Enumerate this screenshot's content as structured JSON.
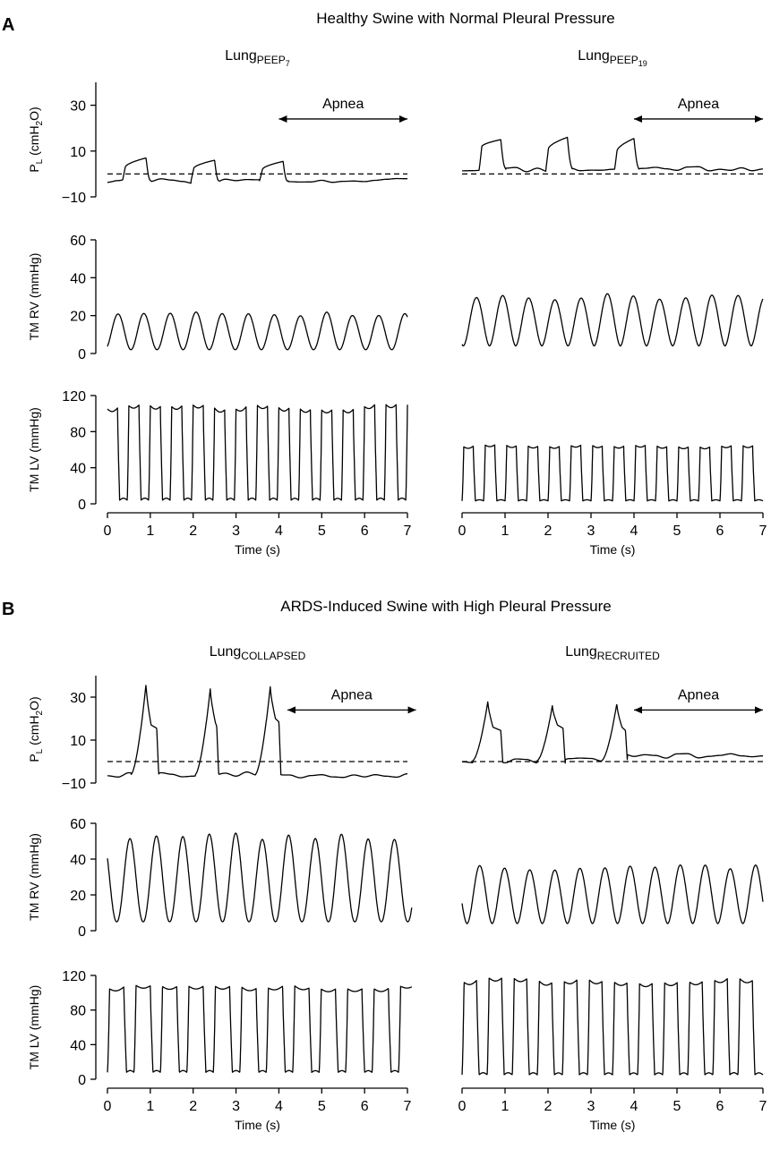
{
  "panels": [
    {
      "letter": "A",
      "title": "Healthy Swine with Normal Pleural Pressure"
    },
    {
      "letter": "B",
      "title": "ARDS-Induced Swine with High Pleural Pressure"
    }
  ],
  "apnea_label": "Apnea",
  "chart_data": [
    {
      "type": "line",
      "panel": "A",
      "column": "left",
      "column_title": {
        "base": "Lung",
        "sub": "PEEP",
        "subsub": "7"
      },
      "xlabel": "Time (s)",
      "xlim": [
        0,
        7
      ],
      "x_ticks": [
        0,
        1,
        2,
        3,
        4,
        5,
        6,
        7
      ],
      "apnea": [
        4.0,
        7.0
      ],
      "rows": [
        {
          "name": "PL",
          "ylabel": "P_L (cmH2O)",
          "ylim": [
            -10,
            40
          ],
          "y_ticks": [
            -10,
            10,
            30
          ],
          "zero_line": 0,
          "shape": "pl",
          "baseline": -3,
          "breaths": [
            [
              0.4,
              6,
              10,
              0.5
            ],
            [
              2.0,
              5.5,
              9,
              0.5
            ],
            [
              3.6,
              5,
              8.5,
              0.5
            ]
          ],
          "tail": -3,
          "seed": 3
        },
        {
          "name": "RV",
          "ylabel": "TM RV (mmHg)",
          "ylim": [
            0,
            60
          ],
          "y_ticks": [
            0,
            20,
            40,
            60
          ],
          "shape": "wave",
          "min": 2,
          "max": 22.5,
          "beats": 11.5,
          "phase": 0.1,
          "sharp": 1.0,
          "t_end": 7.0,
          "seed": 5
        },
        {
          "name": "LV",
          "ylabel": "TM LV (mmHg)",
          "ylim": [
            0,
            120
          ],
          "y_ticks": [
            0,
            40,
            80,
            120
          ],
          "shape": "pulse",
          "min": 2,
          "max": 110,
          "beats": 14,
          "phase": 0.08,
          "duty": 0.55,
          "t_end": 7.0,
          "seed": 7
        }
      ]
    },
    {
      "type": "line",
      "panel": "A",
      "column": "right",
      "column_title": {
        "base": "Lung",
        "sub": "PEEP",
        "subsub": "19"
      },
      "xlabel": "Time (s)",
      "xlim": [
        0,
        7
      ],
      "x_ticks": [
        0,
        1,
        2,
        3,
        4,
        5,
        6,
        7
      ],
      "apnea": [
        4.0,
        7.0
      ],
      "rows": [
        {
          "name": "PL",
          "ylabel": "",
          "ylim": [
            -10,
            40
          ],
          "y_ticks": [],
          "zero_line": 0,
          "shape": "pl",
          "baseline": 2,
          "breaths": [
            [
              0.45,
              10,
              13,
              0.45
            ],
            [
              2.0,
              9,
              14,
              0.45
            ],
            [
              3.6,
              8,
              13.5,
              0.4
            ]
          ],
          "tail": 2.5,
          "seed": 11
        },
        {
          "name": "RV",
          "ylabel": "",
          "ylim": [
            0,
            60
          ],
          "y_ticks": [],
          "shape": "wave",
          "min": 4,
          "max": 32,
          "beats": 11.5,
          "phase": 0.95,
          "sharp": 0.9,
          "t_end": 7.0,
          "seed": 13
        },
        {
          "name": "LV",
          "ylabel": "",
          "ylim": [
            0,
            120
          ],
          "y_ticks": [],
          "shape": "pulse",
          "min": 2,
          "max": 66,
          "beats": 14,
          "phase": 0.0,
          "duty": 0.52,
          "t_end": 7.0,
          "seed": 17
        }
      ]
    },
    {
      "type": "line",
      "panel": "B",
      "column": "left",
      "column_title": {
        "base": "Lung",
        "sub": "COLLAPSED",
        "subsub": ""
      },
      "xlabel": "Time (s)",
      "xlim": [
        0,
        7
      ],
      "x_ticks": [
        0,
        1,
        2,
        3,
        4,
        5,
        6,
        7
      ],
      "apnea": [
        4.2,
        7.2
      ],
      "rows": [
        {
          "name": "PL",
          "ylabel": "P_L (cmH2O)",
          "ylim": [
            -10,
            40
          ],
          "y_ticks": [
            -10,
            10,
            30
          ],
          "zero_line": 0,
          "shape": "peak",
          "baseline": -6,
          "breaths": [
            [
              0.9,
              36,
              17,
              1.15
            ],
            [
              2.4,
              34,
              18,
              2.55
            ],
            [
              3.8,
              35,
              20,
              4.0
            ]
          ],
          "tail": -6.5,
          "seed": 19
        },
        {
          "name": "RV",
          "ylabel": "TM RV (mmHg)",
          "ylim": [
            0,
            60
          ],
          "y_ticks": [
            0,
            20,
            40,
            60
          ],
          "shape": "wave",
          "min": 5,
          "max": 56,
          "beats": 11.5,
          "phase": 0.65,
          "sharp": 1.1,
          "t_end": 7.1,
          "seed": 23
        },
        {
          "name": "LV",
          "ylabel": "TM LV (mmHg)",
          "ylim": [
            0,
            120
          ],
          "y_ticks": [
            0,
            40,
            80,
            120
          ],
          "shape": "pulse",
          "min": 6,
          "max": 109,
          "beats": 11.5,
          "phase": 0.0,
          "duty": 0.62,
          "t_end": 7.1,
          "seed": 29
        }
      ]
    },
    {
      "type": "line",
      "panel": "B",
      "column": "right",
      "column_title": {
        "base": "Lung",
        "sub": "RECRUITED",
        "subsub": ""
      },
      "xlabel": "Time (s)",
      "xlim": [
        0,
        7
      ],
      "x_ticks": [
        0,
        1,
        2,
        3,
        4,
        5,
        6,
        7
      ],
      "apnea": [
        4.0,
        7.0
      ],
      "rows": [
        {
          "name": "PL",
          "ylabel": "",
          "ylim": [
            -10,
            40
          ],
          "y_ticks": [],
          "zero_line": 0,
          "shape": "peak",
          "baseline": 0.5,
          "breaths": [
            [
              0.6,
              28,
              16,
              0.9
            ],
            [
              2.1,
              26,
              17,
              2.35
            ],
            [
              3.6,
              27,
              16,
              3.8
            ]
          ],
          "tail": 2.5,
          "seed": 31
        },
        {
          "name": "RV",
          "ylabel": "",
          "ylim": [
            0,
            60
          ],
          "y_ticks": [],
          "shape": "wave",
          "min": 4,
          "max": 38.5,
          "beats": 12,
          "phase": 0.8,
          "sharp": 0.95,
          "t_end": 7.0,
          "seed": 37
        },
        {
          "name": "LV",
          "ylabel": "",
          "ylim": [
            0,
            120
          ],
          "y_ticks": [],
          "shape": "pulse",
          "min": 3,
          "max": 117,
          "beats": 12,
          "phase": 0.0,
          "duty": 0.58,
          "t_end": 7.0,
          "seed": 41
        }
      ]
    }
  ]
}
